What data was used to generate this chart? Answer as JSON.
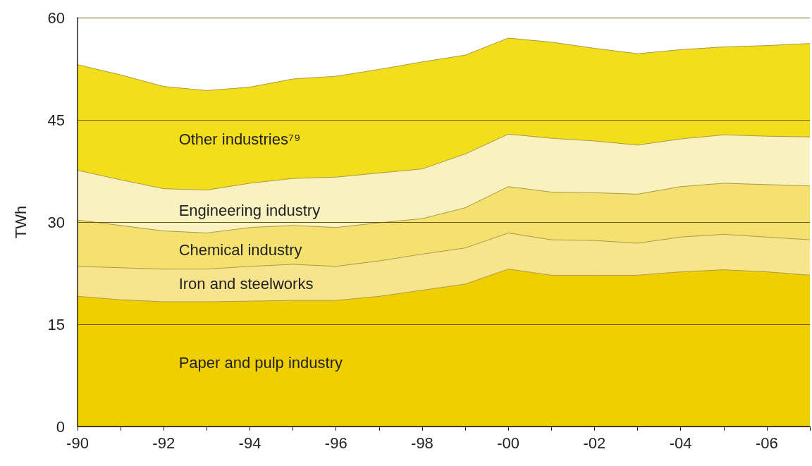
{
  "chart_data": {
    "type": "area",
    "stacked": true,
    "ylabel": "TWh",
    "ylim": [
      0,
      60
    ],
    "yticks": [
      0,
      15,
      30,
      45,
      60
    ],
    "grid": "y",
    "marker": "none",
    "line_style": "solid",
    "categories": [
      "-90",
      null,
      "-92",
      null,
      "-94",
      null,
      "-96",
      null,
      "-98",
      null,
      "-00",
      null,
      "-02",
      null,
      "-04",
      null,
      "-06",
      null
    ],
    "series": [
      {
        "name": "Paper and pulp industry",
        "color": "#f0cf00",
        "values": [
          19.1,
          18.6,
          18.3,
          18.3,
          18.4,
          18.5,
          18.5,
          19.1,
          20.0,
          20.9,
          23.1,
          22.2,
          22.2,
          22.2,
          22.7,
          23.0,
          22.7,
          22.2
        ]
      },
      {
        "name": "Iron and steelworks",
        "color": "#f7e48c",
        "values": [
          4.4,
          4.7,
          4.8,
          4.8,
          5.1,
          5.3,
          5.0,
          5.2,
          5.3,
          5.3,
          5.3,
          5.2,
          5.1,
          4.7,
          5.1,
          5.2,
          5.1,
          5.2
        ]
      },
      {
        "name": "Chemical industry",
        "color": "#f5e170",
        "values": [
          6.8,
          6.2,
          5.6,
          5.3,
          5.7,
          5.7,
          5.7,
          5.6,
          5.2,
          5.9,
          6.8,
          7.0,
          7.0,
          7.2,
          7.4,
          7.5,
          7.7,
          7.9
        ]
      },
      {
        "name": "Engineering industry",
        "color": "#faf1c0",
        "values": [
          7.3,
          6.7,
          6.2,
          6.3,
          6.5,
          6.9,
          7.4,
          7.3,
          7.3,
          7.9,
          7.7,
          7.9,
          7.6,
          7.2,
          7.0,
          7.1,
          7.1,
          7.2
        ]
      },
      {
        "name": "Other industries⁷⁹",
        "color": "#f2de1a",
        "values": [
          15.5,
          15.4,
          15.0,
          14.6,
          14.1,
          14.6,
          14.8,
          15.2,
          15.7,
          14.5,
          14.1,
          14.1,
          13.6,
          13.4,
          13.1,
          12.9,
          13.3,
          13.7
        ]
      }
    ]
  }
}
